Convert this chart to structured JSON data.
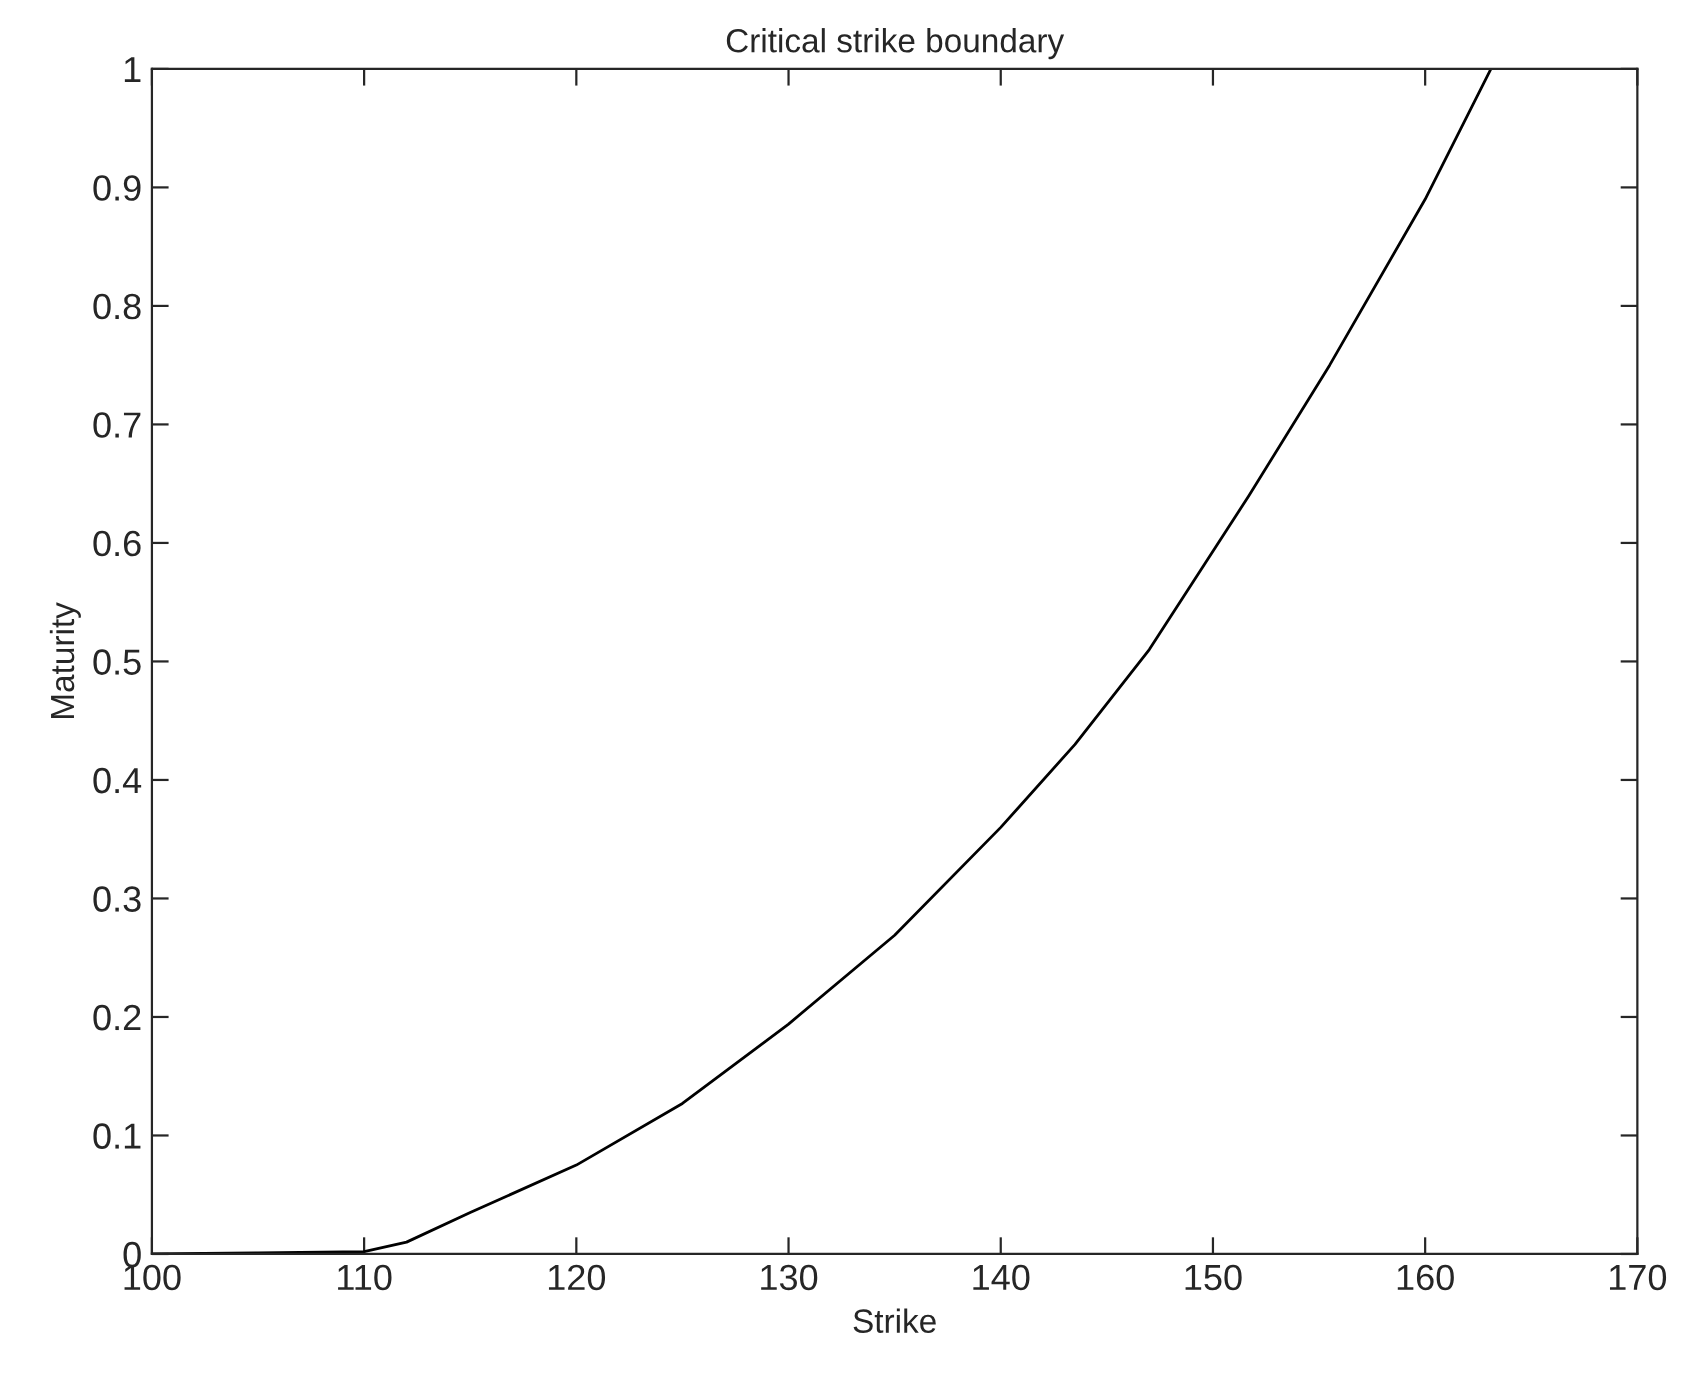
{
  "chart_data": {
    "type": "line",
    "title": "Critical strike boundary",
    "xlabel": "Strike",
    "ylabel": "Maturity",
    "series": [
      {
        "color": "#000000",
        "x": [
          100,
          105,
          110,
          112,
          115,
          120,
          125,
          130,
          135,
          140,
          143.5,
          147,
          151.7,
          155.5,
          160,
          163.1
        ],
        "values": [
          0,
          0.001,
          0.002,
          0.01,
          0.035,
          0.075,
          0.127,
          0.194,
          0.269,
          0.36,
          0.43,
          0.51,
          0.64,
          0.75,
          0.89,
          1
        ]
      }
    ],
    "xlim": [
      100,
      170
    ],
    "xticks": [
      100,
      110,
      120,
      130,
      140,
      150,
      160,
      170
    ],
    "ylim": [
      0,
      1
    ],
    "yticks": [
      0,
      {
        "value": 0.1,
        "label": "0.1"
      },
      {
        "value": 0.2,
        "label": "0.2"
      },
      {
        "value": 0.3,
        "label": "0.3"
      },
      {
        "value": 0.4,
        "label": "0.4"
      },
      {
        "value": 0.5,
        "label": "0.5"
      },
      {
        "value": 0.6,
        "label": "0.6"
      },
      {
        "value": 0.7,
        "label": "0.7"
      },
      {
        "value": 0.8,
        "label": "0.8"
      },
      {
        "value": 0.9,
        "label": "0.9"
      },
      1
    ],
    "grid": false,
    "legend": false,
    "marker": "none",
    "line_style": "solid"
  }
}
